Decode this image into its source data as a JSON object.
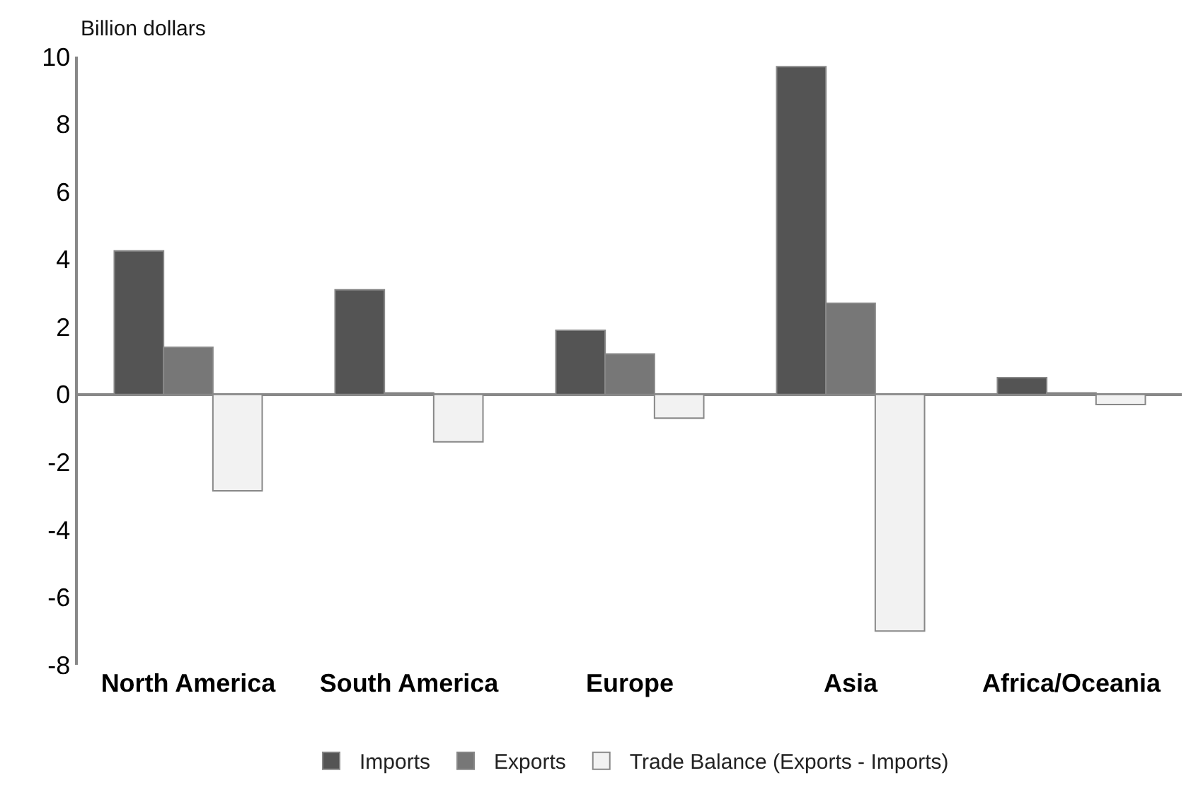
{
  "chart_data": {
    "type": "bar",
    "ylabel": "Billion dollars",
    "categories": [
      "North America",
      "South America",
      "Europe",
      "Asia",
      "Africa/Oceania"
    ],
    "series": [
      {
        "name": "Imports",
        "color": "#545454",
        "values": [
          4.25,
          3.1,
          1.9,
          9.7,
          0.5
        ]
      },
      {
        "name": "Exports",
        "color": "#777777",
        "values": [
          1.4,
          0.05,
          1.2,
          2.7,
          0.05
        ]
      },
      {
        "name": "Trade Balance (Exports - Imports)",
        "color": "#f2f2f2",
        "values": [
          -2.85,
          -1.4,
          -0.7,
          -7.0,
          -0.3
        ]
      }
    ],
    "ylim": [
      -8,
      10
    ],
    "yticks": [
      -8,
      -6,
      -4,
      -2,
      0,
      2,
      4,
      6,
      8,
      10
    ],
    "legend": "bottom"
  }
}
